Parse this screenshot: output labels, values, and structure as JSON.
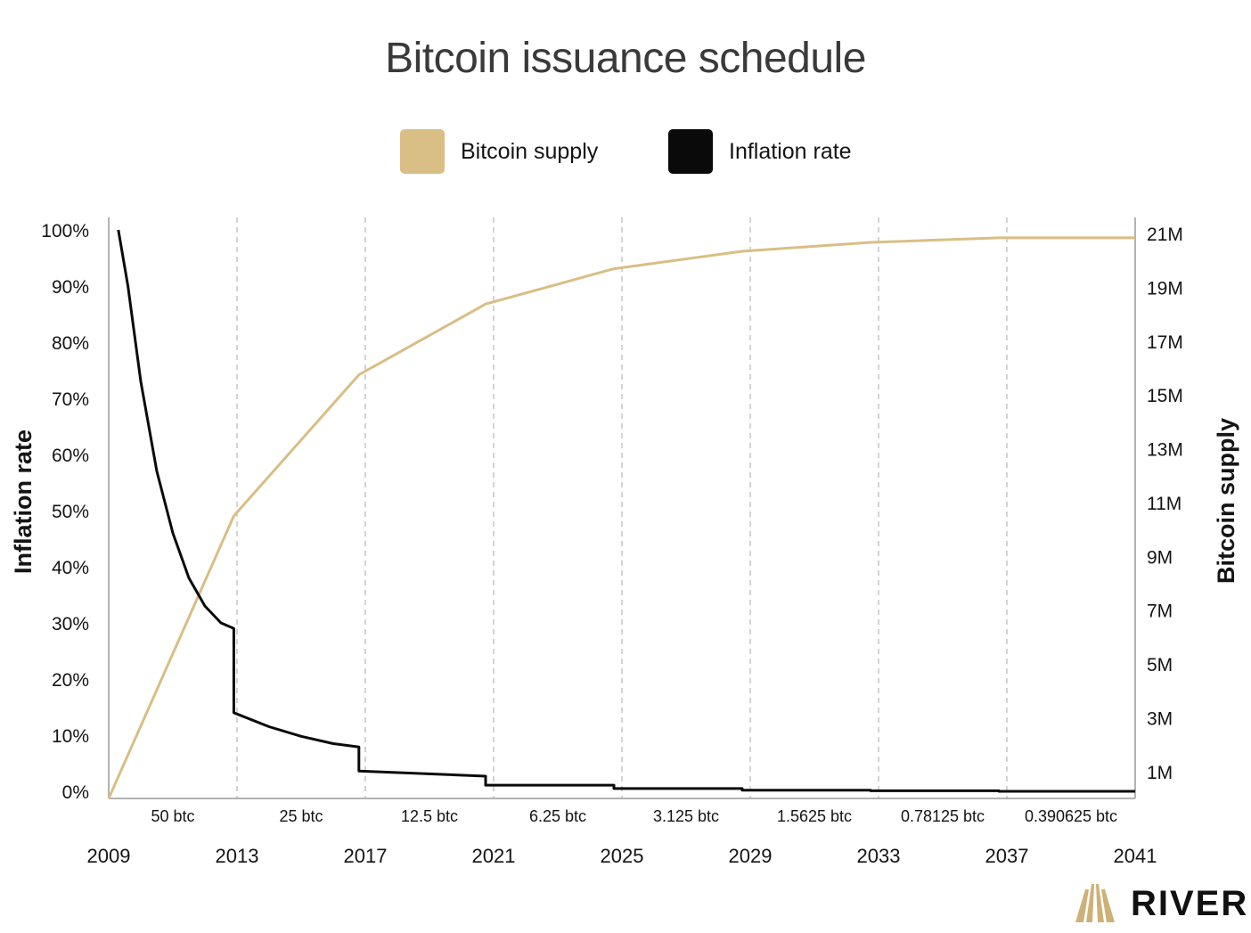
{
  "title": "Bitcoin issuance schedule",
  "colors": {
    "supply": "#d9be85",
    "inflation": "#0a0a0a",
    "grid": "#bdbdbd",
    "axis": "#9a9a9a",
    "logo_mark": "#cfb178"
  },
  "legend": [
    {
      "label": "Bitcoin supply",
      "color": "#d9be85"
    },
    {
      "label": "Inflation rate",
      "color": "#0a0a0a"
    }
  ],
  "brand": {
    "name": "RIVER"
  },
  "chart_data": {
    "type": "line",
    "title": "Bitcoin issuance schedule",
    "xlabel": "",
    "y_left_label": "Inflation rate",
    "y_right_label": "Bitcoin supply",
    "x_range": [
      2009,
      2041
    ],
    "x_ticks": [
      "2009",
      "2013",
      "2017",
      "2021",
      "2025",
      "2029",
      "2033",
      "2037",
      "2041"
    ],
    "x_tick_values": [
      2009,
      2013,
      2017,
      2021,
      2025,
      2029,
      2033,
      2037,
      2041
    ],
    "y_left_range": [
      0,
      100
    ],
    "y_left_ticks": [
      "0%",
      "10%",
      "20%",
      "30%",
      "40%",
      "50%",
      "60%",
      "70%",
      "80%",
      "90%",
      "100%"
    ],
    "y_left_tick_values": [
      0,
      10,
      20,
      30,
      40,
      50,
      60,
      70,
      80,
      90,
      100
    ],
    "y_right_range": [
      0,
      21.4
    ],
    "y_right_ticks": [
      "1M",
      "3M",
      "5M",
      "7M",
      "9M",
      "11M",
      "13M",
      "15M",
      "17M",
      "19M",
      "21M"
    ],
    "y_right_tick_values": [
      1,
      3,
      5,
      7,
      9,
      11,
      13,
      15,
      17,
      19,
      21
    ],
    "halving_years": [
      2013,
      2017,
      2021,
      2025,
      2029,
      2033,
      2037
    ],
    "grid": "vertical dashed at halvings",
    "legend_position": "top-center",
    "reward_eras": [
      {
        "label": "50 btc",
        "start": 2009,
        "end": 2013
      },
      {
        "label": "25 btc",
        "start": 2013,
        "end": 2017
      },
      {
        "label": "12.5 btc",
        "start": 2017,
        "end": 2021
      },
      {
        "label": "6.25 btc",
        "start": 2021,
        "end": 2025
      },
      {
        "label": "3.125 btc",
        "start": 2025,
        "end": 2029
      },
      {
        "label": "1.5625 btc",
        "start": 2029,
        "end": 2033
      },
      {
        "label": "0.78125 btc",
        "start": 2033,
        "end": 2037
      },
      {
        "label": "0.390625 btc",
        "start": 2037,
        "end": 2041
      }
    ],
    "series": [
      {
        "name": "Bitcoin supply",
        "axis": "right",
        "x": [
          2009.0,
          2012.9,
          2016.8,
          2020.75,
          2024.75,
          2028.75,
          2032.75,
          2036.75,
          2041.0
        ],
        "y": [
          0,
          10.5,
          15.75,
          18.38,
          19.69,
          20.34,
          20.67,
          20.84,
          20.84
        ]
      },
      {
        "name": "Inflation rate",
        "axis": "left",
        "x": [
          2009.3,
          2009.6,
          2010.0,
          2010.5,
          2011.0,
          2011.5,
          2012.0,
          2012.5,
          2012.9,
          2012.9,
          2014.0,
          2015.0,
          2016.0,
          2016.8,
          2016.8,
          2020.75,
          2020.75,
          2024.75,
          2024.75,
          2028.75,
          2028.75,
          2032.75,
          2032.75,
          2036.75,
          2036.75,
          2041.0
        ],
        "y": [
          100,
          90,
          73,
          57,
          46,
          38,
          33,
          30,
          29,
          14,
          11.5,
          9.8,
          8.5,
          7.9,
          3.6,
          2.7,
          1.1,
          1.1,
          0.5,
          0.5,
          0.2,
          0.2,
          0.1,
          0.1,
          0.0,
          0.0
        ]
      }
    ]
  }
}
